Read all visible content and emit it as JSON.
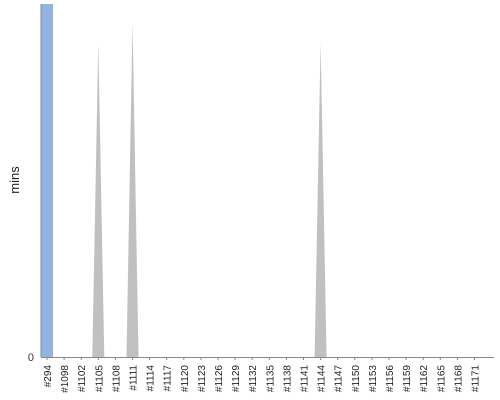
{
  "chart_data": {
    "type": "area",
    "ylabel": "mins",
    "y_tick_labels": [
      "0"
    ],
    "ylim": [
      0,
      100
    ],
    "categories": [
      "#294",
      "#1098",
      "#1102",
      "#1105",
      "#1108",
      "#1111",
      "#1114",
      "#1117",
      "#1120",
      "#1123",
      "#1126",
      "#1129",
      "#1132",
      "#1135",
      "#1138",
      "#1141",
      "#1144",
      "#1147",
      "#1150",
      "#1153",
      "#1156",
      "#1159",
      "#1162",
      "#1165",
      "#1168",
      "#1171"
    ],
    "highlight": {
      "category": "#294",
      "color": "#93b4e3",
      "value": 100
    },
    "series": [
      {
        "color": "#c0c0c0",
        "values": [
          0,
          0,
          0,
          0,
          0,
          0,
          0,
          0,
          0,
          0,
          0,
          0,
          0,
          0,
          0,
          0,
          0,
          0,
          0,
          0,
          0,
          0,
          0,
          0,
          0,
          0
        ],
        "spikes": [
          {
            "category": "#1105",
            "value": 89
          },
          {
            "category": "#1111",
            "value": 95
          },
          {
            "category": "#1144",
            "value": 89
          }
        ]
      }
    ],
    "grid": false,
    "legend": "none"
  }
}
